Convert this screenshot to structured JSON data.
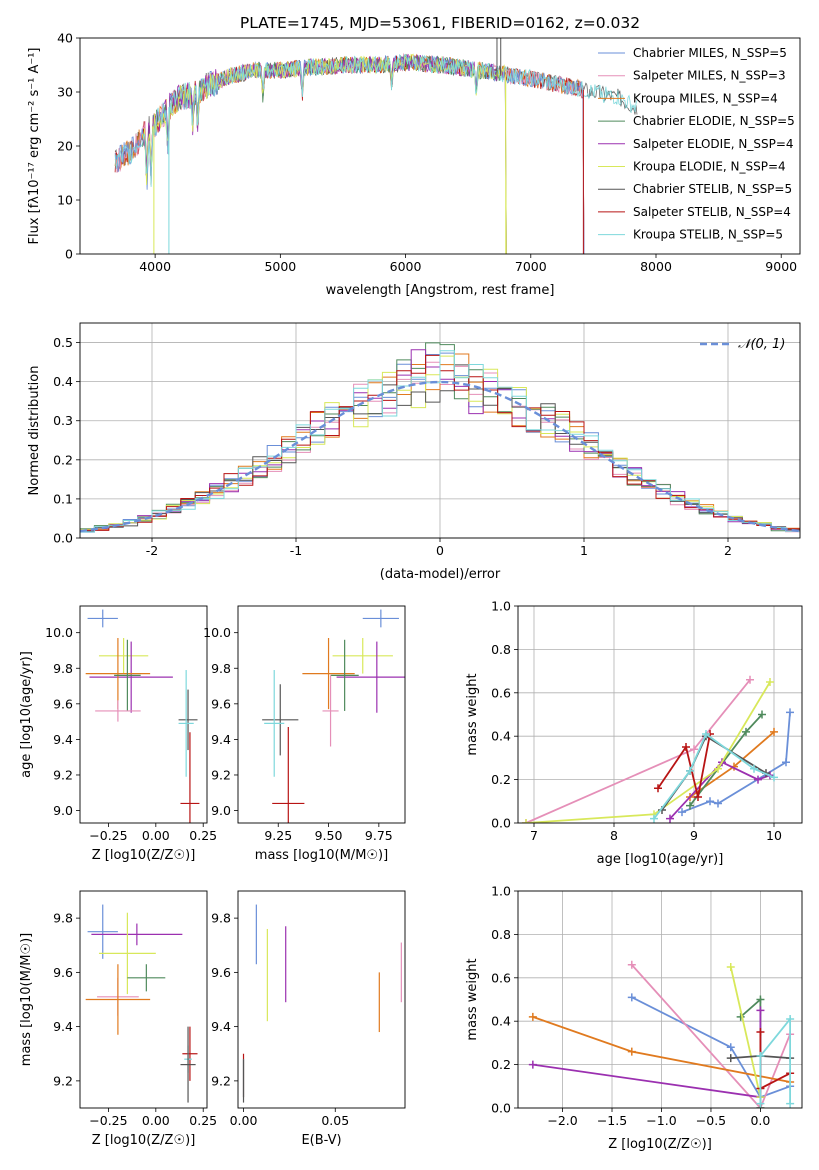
{
  "figure_title": "PLATE=1745, MJD=53061, FIBERID=0162, z=0.032",
  "model_colors": {
    "Chabrier MILES": "#6a8fd8",
    "Salpeter MILES": "#e58fb8",
    "Kroupa MILES": "#e07a1f",
    "Chabrier ELODIE": "#4f8a5c",
    "Salpeter ELODIE": "#9b30b0",
    "Kroupa ELODIE": "#d8e85a",
    "Chabrier STELIB": "#555555",
    "Salpeter STELIB": "#b81414",
    "Kroupa STELIB": "#7ed8dc"
  },
  "chart_data": [
    {
      "type": "line",
      "title": "PLATE=1745, MJD=53061, FIBERID=0162, z=0.032",
      "xlabel": "wavelength [Angstrom, rest frame]",
      "ylabel": "Flux [fλ10⁻¹⁷ erg cm⁻² s⁻¹ A⁻¹]",
      "xlim": [
        3400,
        9150
      ],
      "ylim": [
        0,
        40
      ],
      "xticks": [
        4000,
        5000,
        6000,
        7000,
        8000,
        9000
      ],
      "yticks": [
        0,
        10,
        20,
        30,
        40
      ],
      "legend_position": "top-right",
      "legend": [
        "Chabrier MILES, N_SSP=5",
        "Salpeter MILES, N_SSP=3",
        "Kroupa MILES, N_SSP=4",
        "Chabrier ELODIE, N_SSP=5",
        "Salpeter ELODIE, N_SSP=4",
        "Kroupa ELODIE, N_SSP=4",
        "Chabrier STELIB, N_SSP=5",
        "Salpeter STELIB, N_SSP=4",
        "Kroupa STELIB, N_SSP=5"
      ],
      "legend_models": [
        "Chabrier MILES",
        "Salpeter MILES",
        "Kroupa MILES",
        "Chabrier ELODIE",
        "Salpeter ELODIE",
        "Kroupa ELODIE",
        "Chabrier STELIB",
        "Salpeter STELIB",
        "Kroupa STELIB"
      ],
      "continuum": [
        [
          3680,
          17
        ],
        [
          3800,
          19
        ],
        [
          3900,
          22
        ],
        [
          4000,
          24
        ],
        [
          4100,
          27
        ],
        [
          4200,
          29
        ],
        [
          4300,
          29.5
        ],
        [
          4400,
          31
        ],
        [
          4500,
          32
        ],
        [
          4600,
          33
        ],
        [
          4800,
          34
        ],
        [
          5000,
          34
        ],
        [
          5200,
          34.5
        ],
        [
          5500,
          35
        ],
        [
          5800,
          35
        ],
        [
          6000,
          35.5
        ],
        [
          6300,
          35
        ],
        [
          6600,
          34
        ],
        [
          7000,
          32.5
        ],
        [
          7300,
          31
        ],
        [
          7500,
          30
        ],
        [
          7700,
          29
        ],
        [
          7850,
          27
        ]
      ],
      "model_ranges": {
        "Chabrier MILES": [
          3680,
          7420
        ],
        "Salpeter MILES": [
          3680,
          7420
        ],
        "Kroupa MILES": [
          3680,
          7420
        ],
        "Chabrier ELODIE": [
          3900,
          6800
        ],
        "Salpeter ELODIE": [
          3900,
          6800
        ],
        "Kroupa ELODIE": [
          3900,
          6800
        ],
        "Chabrier STELIB": [
          3680,
          7850
        ],
        "Salpeter STELIB": [
          3680,
          7420
        ],
        "Kroupa STELIB": [
          3680,
          7850
        ]
      }
    },
    {
      "type": "histogram",
      "xlabel": "(data-model)/error",
      "ylabel": "Normed distribution",
      "xlim": [
        -2.5,
        2.5
      ],
      "ylim": [
        0,
        0.55
      ],
      "xticks": [
        -2,
        -1,
        0,
        1,
        2
      ],
      "yticks": [
        0.0,
        0.1,
        0.2,
        0.3,
        0.4,
        0.5
      ],
      "bin_width": 0.1,
      "curve_label": "𝒩(0, 1)",
      "curve_color": "#6a8fd8",
      "legend_position": "top-right",
      "grid": true
    },
    {
      "type": "scatter",
      "xlabel": "Z [log10(Z/Z☉)]",
      "ylabel": "age  [log10(age/yr)]",
      "xlim": [
        -0.4,
        0.27
      ],
      "ylim": [
        8.93,
        10.15
      ],
      "xticks": [
        -0.25,
        0.0,
        0.25
      ],
      "xtick_labels": [
        "−0.25",
        "0.00",
        "0.25"
      ],
      "yticks": [
        9.0,
        9.2,
        9.4,
        9.6,
        9.8,
        10.0
      ],
      "points": [
        {
          "model": "Chabrier MILES",
          "x": -0.28,
          "y": 10.08,
          "xerr": 0.08,
          "yerr": 0.05
        },
        {
          "model": "Kroupa ELODIE",
          "x": -0.17,
          "y": 9.87,
          "xerr": 0.13,
          "yerr": 0.1
        },
        {
          "model": "Salpeter ELODIE",
          "x": -0.13,
          "y": 9.75,
          "xerr": 0.22,
          "yerr": 0.2
        },
        {
          "model": "Kroupa MILES",
          "x": -0.2,
          "y": 9.77,
          "xerr": 0.17,
          "yerr": 0.2
        },
        {
          "model": "Chabrier ELODIE",
          "x": -0.15,
          "y": 9.76,
          "xerr": 0.07,
          "yerr": 0.2
        },
        {
          "model": "Salpeter MILES",
          "x": -0.2,
          "y": 9.56,
          "xerr": 0.12,
          "yerr": 0.06
        },
        {
          "model": "Chabrier STELIB",
          "x": 0.17,
          "y": 9.51,
          "xerr": 0.05,
          "yerr": 0.17
        },
        {
          "model": "Kroupa STELIB",
          "x": 0.16,
          "y": 9.49,
          "xerr": 0.04,
          "yerr": 0.3
        },
        {
          "model": "Salpeter STELIB",
          "x": 0.18,
          "y": 9.04,
          "xerr": 0.05,
          "yerr": 0.4
        }
      ]
    },
    {
      "type": "scatter",
      "xlabel": "mass [log10(M/M☉)]",
      "ylabel": "",
      "xlim": [
        9.05,
        9.88
      ],
      "ylim": [
        8.93,
        10.15
      ],
      "xticks": [
        9.25,
        9.5,
        9.75
      ],
      "xtick_labels": [
        "9.25",
        "9.50",
        "9.75"
      ],
      "yticks": [
        9.0,
        9.2,
        9.4,
        9.6,
        9.8,
        10.0
      ],
      "points": [
        {
          "model": "Chabrier MILES",
          "x": 9.76,
          "y": 10.08,
          "xerr": 0.09,
          "yerr": 0.05
        },
        {
          "model": "Kroupa ELODIE",
          "x": 9.67,
          "y": 9.87,
          "xerr": 0.15,
          "yerr": 0.1
        },
        {
          "model": "Salpeter ELODIE",
          "x": 9.74,
          "y": 9.75,
          "xerr": 0.2,
          "yerr": 0.2
        },
        {
          "model": "Kroupa MILES",
          "x": 9.5,
          "y": 9.77,
          "xerr": 0.13,
          "yerr": 0.2
        },
        {
          "model": "Chabrier ELODIE",
          "x": 9.58,
          "y": 9.76,
          "xerr": 0.07,
          "yerr": 0.2
        },
        {
          "model": "Salpeter MILES",
          "x": 9.51,
          "y": 9.56,
          "xerr": 0.04,
          "yerr": 0.2
        },
        {
          "model": "Chabrier STELIB",
          "x": 9.26,
          "y": 9.51,
          "xerr": 0.09,
          "yerr": 0.2
        },
        {
          "model": "Kroupa STELIB",
          "x": 9.23,
          "y": 9.49,
          "xerr": 0.05,
          "yerr": 0.3
        },
        {
          "model": "Salpeter STELIB",
          "x": 9.3,
          "y": 9.04,
          "xerr": 0.08,
          "yerr": 0.43
        }
      ]
    },
    {
      "type": "line",
      "xlabel": "age  [log10(age/yr)]",
      "ylabel": "mass weight",
      "xlim": [
        6.8,
        10.35
      ],
      "ylim": [
        0,
        1.0
      ],
      "xticks": [
        7,
        8,
        9,
        10
      ],
      "yticks": [
        0.0,
        0.2,
        0.4,
        0.6,
        0.8,
        1.0
      ],
      "grid": true,
      "series": [
        {
          "model": "Chabrier MILES",
          "points": [
            [
              8.85,
              0.05
            ],
            [
              9.2,
              0.1
            ],
            [
              9.3,
              0.09
            ],
            [
              10.15,
              0.28
            ],
            [
              10.2,
              0.51
            ]
          ]
        },
        {
          "model": "Salpeter MILES",
          "points": [
            [
              6.9,
              0.0
            ],
            [
              9.0,
              0.34
            ],
            [
              9.7,
              0.66
            ]
          ]
        },
        {
          "model": "Kroupa MILES",
          "points": [
            [
              8.95,
              0.12
            ],
            [
              9.5,
              0.26
            ],
            [
              10.0,
              0.42
            ]
          ]
        },
        {
          "model": "Chabrier ELODIE",
          "points": [
            [
              8.95,
              0.08
            ],
            [
              9.65,
              0.42
            ],
            [
              9.85,
              0.5
            ]
          ]
        },
        {
          "model": "Salpeter ELODIE",
          "points": [
            [
              8.7,
              0.02
            ],
            [
              9.35,
              0.28
            ],
            [
              9.8,
              0.2
            ],
            [
              9.95,
              0.22
            ]
          ]
        },
        {
          "model": "Kroupa ELODIE",
          "points": [
            [
              6.9,
              0.0
            ],
            [
              8.5,
              0.04
            ],
            [
              9.3,
              0.25
            ],
            [
              9.95,
              0.65
            ]
          ]
        },
        {
          "model": "Chabrier STELIB",
          "points": [
            [
              8.6,
              0.06
            ],
            [
              8.95,
              0.24
            ],
            [
              9.15,
              0.4
            ],
            [
              9.9,
              0.23
            ]
          ]
        },
        {
          "model": "Salpeter STELIB",
          "points": [
            [
              8.55,
              0.16
            ],
            [
              8.9,
              0.35
            ],
            [
              9.05,
              0.12
            ],
            [
              9.2,
              0.41
            ]
          ]
        },
        {
          "model": "Kroupa STELIB",
          "points": [
            [
              8.5,
              0.02
            ],
            [
              8.95,
              0.24
            ],
            [
              9.15,
              0.41
            ],
            [
              9.75,
              0.25
            ],
            [
              10.0,
              0.21
            ]
          ]
        }
      ]
    },
    {
      "type": "scatter",
      "xlabel": "Z [log10(Z/Z☉)]",
      "ylabel": "mass [log10(M/M☉)]",
      "xlim": [
        -0.4,
        0.27
      ],
      "ylim": [
        9.1,
        9.9
      ],
      "xticks": [
        -0.25,
        0.0,
        0.25
      ],
      "xtick_labels": [
        "−0.25",
        "0.00",
        "0.25"
      ],
      "yticks": [
        9.2,
        9.4,
        9.6,
        9.8
      ],
      "points": [
        {
          "model": "Chabrier MILES",
          "x": -0.28,
          "y": 9.75,
          "xerr": 0.08,
          "yerr": 0.1
        },
        {
          "model": "Salpeter ELODIE",
          "x": -0.1,
          "y": 9.74,
          "xerr": 0.24,
          "yerr": 0.04
        },
        {
          "model": "Kroupa ELODIE",
          "x": -0.15,
          "y": 9.67,
          "xerr": 0.15,
          "yerr": 0.15
        },
        {
          "model": "Chabrier ELODIE",
          "x": -0.05,
          "y": 9.58,
          "xerr": 0.1,
          "yerr": 0.05
        },
        {
          "model": "Salpeter MILES",
          "x": -0.2,
          "y": 9.51,
          "xerr": 0.11,
          "yerr": 0.07
        },
        {
          "model": "Kroupa MILES",
          "x": -0.2,
          "y": 9.5,
          "xerr": 0.17,
          "yerr": 0.13
        },
        {
          "model": "Salpeter STELIB",
          "x": 0.18,
          "y": 9.3,
          "xerr": 0.04,
          "yerr": 0.1
        },
        {
          "model": "Kroupa STELIB",
          "x": 0.17,
          "y": 9.28,
          "xerr": 0.02,
          "yerr": 0.05
        },
        {
          "model": "Chabrier STELIB",
          "x": 0.17,
          "y": 9.26,
          "xerr": 0.04,
          "yerr": 0.14
        }
      ]
    },
    {
      "type": "scatter",
      "xlabel": "E(B-V)",
      "ylabel": "",
      "xlim": [
        -0.003,
        0.088
      ],
      "ylim": [
        9.1,
        9.9
      ],
      "xticks": [
        0.0,
        0.05
      ],
      "xtick_labels": [
        "0.00",
        "0.05"
      ],
      "yticks": [
        9.2,
        9.4,
        9.6,
        9.8
      ],
      "points": [
        {
          "model": "Chabrier MILES",
          "x": 0.007,
          "y": 9.74,
          "xerr": 0,
          "yerr": 0.11
        },
        {
          "model": "Salpeter ELODIE",
          "x": 0.023,
          "y": 9.63,
          "xerr": 0,
          "yerr": 0.14
        },
        {
          "model": "Kroupa ELODIE",
          "x": 0.013,
          "y": 9.59,
          "xerr": 0,
          "yerr": 0.17
        },
        {
          "model": "Kroupa MILES",
          "x": 0.074,
          "y": 9.49,
          "xerr": 0,
          "yerr": 0.11
        },
        {
          "model": "Salpeter MILES",
          "x": 0.086,
          "y": 9.6,
          "xerr": 0,
          "yerr": 0.11
        },
        {
          "model": "Salpeter STELIB",
          "x": 0.0,
          "y": 9.22,
          "xerr": 0,
          "yerr": 0.08
        },
        {
          "model": "Kroupa STELIB",
          "x": 0.0,
          "y": 9.21,
          "xerr": 0,
          "yerr": 0.07
        },
        {
          "model": "Chabrier STELIB",
          "x": 0.0,
          "y": 9.2,
          "xerr": 0,
          "yerr": 0.08
        }
      ]
    },
    {
      "type": "line",
      "xlabel": "Z [log10(Z/Z☉)]",
      "ylabel": "mass weight",
      "xlim": [
        -2.45,
        0.42
      ],
      "ylim": [
        0,
        1.0
      ],
      "xticks": [
        -2.0,
        -1.5,
        -1.0,
        -0.5,
        0.0
      ],
      "xtick_labels": [
        "−2.0",
        "−1.5",
        "−1.0",
        "−0.5",
        "0.0"
      ],
      "yticks": [
        0.0,
        0.2,
        0.4,
        0.6,
        0.8,
        1.0
      ],
      "grid": true,
      "series": [
        {
          "model": "Chabrier MILES",
          "points": [
            [
              -1.3,
              0.51
            ],
            [
              -0.3,
              0.28
            ],
            [
              0.0,
              0.05
            ],
            [
              0.3,
              0.1
            ]
          ]
        },
        {
          "model": "Salpeter MILES",
          "points": [
            [
              -1.3,
              0.66
            ],
            [
              0.0,
              0.0
            ],
            [
              0.3,
              0.34
            ]
          ]
        },
        {
          "model": "Kroupa MILES",
          "points": [
            [
              -2.3,
              0.42
            ],
            [
              -1.3,
              0.26
            ],
            [
              0.3,
              0.12
            ]
          ]
        },
        {
          "model": "Chabrier ELODIE",
          "points": [
            [
              -0.2,
              0.42
            ],
            [
              0.0,
              0.5
            ],
            [
              0.0,
              0.0
            ]
          ]
        },
        {
          "model": "Salpeter ELODIE",
          "points": [
            [
              -2.3,
              0.2
            ],
            [
              0.0,
              0.05
            ],
            [
              0.0,
              0.45
            ]
          ]
        },
        {
          "model": "Kroupa ELODIE",
          "points": [
            [
              -0.3,
              0.65
            ],
            [
              0.0,
              0.05
            ]
          ]
        },
        {
          "model": "Chabrier STELIB",
          "points": [
            [
              -0.3,
              0.23
            ],
            [
              0.0,
              0.24
            ],
            [
              0.3,
              0.23
            ]
          ]
        },
        {
          "model": "Salpeter STELIB",
          "points": [
            [
              0.0,
              0.35
            ],
            [
              0.0,
              0.09
            ],
            [
              0.3,
              0.16
            ]
          ]
        },
        {
          "model": "Kroupa STELIB",
          "points": [
            [
              0.0,
              0.02
            ],
            [
              0.0,
              0.24
            ],
            [
              0.3,
              0.41
            ],
            [
              0.3,
              0.02
            ]
          ]
        }
      ]
    }
  ]
}
